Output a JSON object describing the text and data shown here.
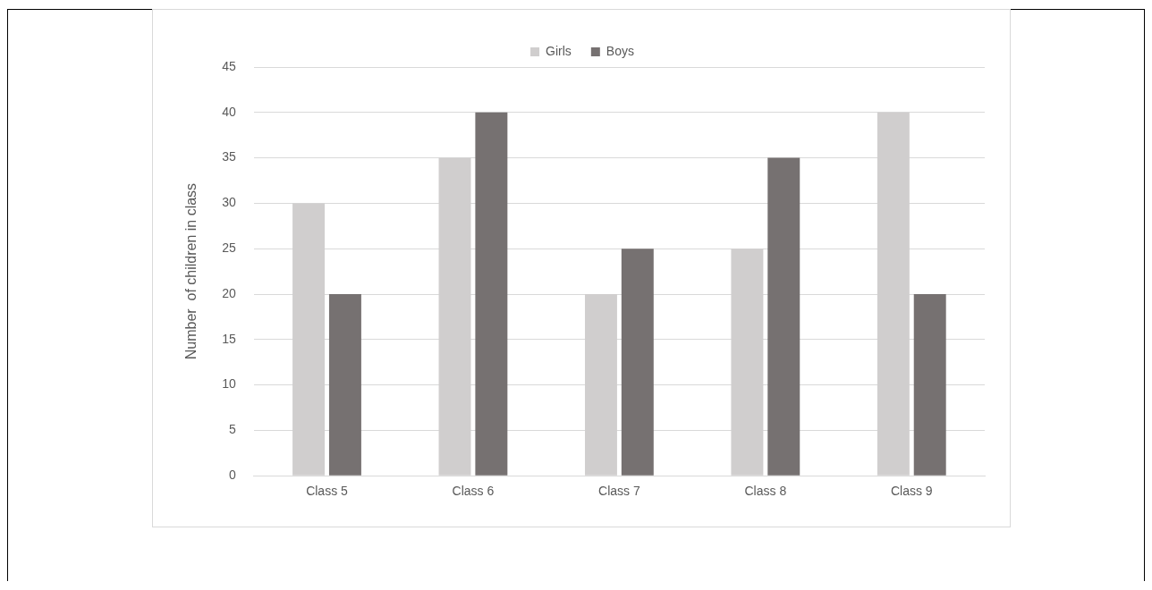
{
  "chart_data": {
    "type": "bar",
    "ylabel": "Number  of children in class",
    "categories": [
      "Class 5",
      "Class 6",
      "Class 7",
      "Class 8",
      "Class 9"
    ],
    "series": [
      {
        "name": "Girls",
        "color": "#d0cece",
        "values": [
          30,
          35,
          20,
          25,
          40
        ]
      },
      {
        "name": "Boys",
        "color": "#767171",
        "values": [
          20,
          40,
          25,
          35,
          20
        ]
      }
    ],
    "ylim": [
      0,
      45
    ],
    "yticks": [
      0,
      5,
      10,
      15,
      20,
      25,
      30,
      35,
      40,
      45
    ],
    "grid": "y",
    "legend": "top"
  }
}
